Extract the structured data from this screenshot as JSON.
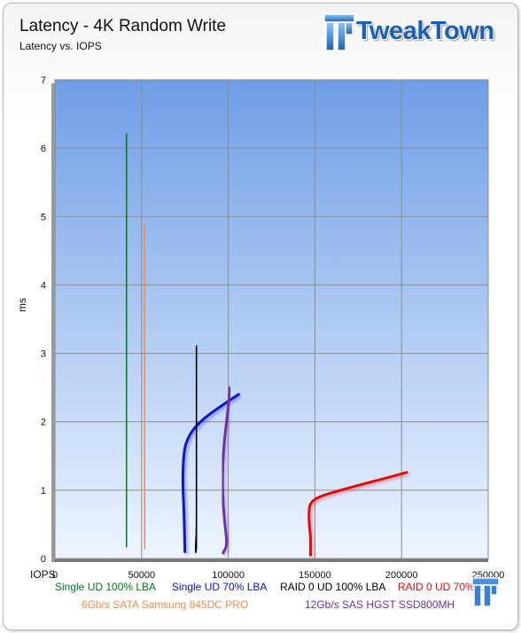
{
  "header": {
    "title": "Latency - 4K Random Write",
    "subtitle": "Latency vs. IOPS",
    "brand": "TweakTown"
  },
  "colors": {
    "plot_top": "#6f9ee6",
    "plot_bottom": "#eef5ff",
    "grid": "#8c8c8c"
  },
  "chart_data": {
    "type": "line",
    "title": "Latency - 4K Random Write",
    "subtitle": "Latency vs. IOPS",
    "xlabel": "IOPS",
    "ylabel": "ms",
    "xlim": [
      0,
      250000
    ],
    "ylim": [
      0,
      7
    ],
    "x_ticks": [
      "0",
      "50000",
      "100000",
      "150000",
      "200000",
      "250000"
    ],
    "y_ticks": [
      "0",
      "1",
      "2",
      "3",
      "4",
      "5",
      "6",
      "7"
    ],
    "grid": true,
    "legend_position": "bottom",
    "series": [
      {
        "name": "Single UD 100% LBA",
        "color": "#007a1f",
        "points": [
          [
            41000,
            0.18
          ],
          [
            41200,
            1.5
          ],
          [
            41400,
            3.0
          ],
          [
            41400,
            4.5
          ],
          [
            41600,
            6.2
          ]
        ]
      },
      {
        "name": "Single UD 70% LBA",
        "color": "#0a14c8",
        "points": [
          [
            75000,
            0.1
          ],
          [
            74600,
            0.6
          ],
          [
            73600,
            1.2
          ],
          [
            74600,
            1.6
          ],
          [
            76500,
            1.75
          ],
          [
            80000,
            1.9
          ],
          [
            86000,
            2.05
          ],
          [
            93000,
            2.18
          ],
          [
            100000,
            2.3
          ],
          [
            106000,
            2.4
          ]
        ]
      },
      {
        "name": "RAID 0 UD 100% LBA",
        "color": "#000000",
        "points": [
          [
            81000,
            0.1
          ],
          [
            82000,
            0.3
          ],
          [
            82000,
            1.0
          ],
          [
            82000,
            2.0
          ],
          [
            82000,
            3.1
          ]
        ]
      },
      {
        "name": "RAID 0 UD 70% LBA",
        "color": "#e01010",
        "points": [
          [
            147500,
            0.05
          ],
          [
            147500,
            0.35
          ],
          [
            146800,
            0.45
          ],
          [
            146500,
            0.7
          ],
          [
            147500,
            0.82
          ],
          [
            152000,
            0.9
          ],
          [
            162000,
            0.98
          ],
          [
            175000,
            1.07
          ],
          [
            190000,
            1.17
          ],
          [
            203000,
            1.26
          ]
        ]
      },
      {
        "name": "6Gb/s SATA Samsung 845DC PRO",
        "color": "#f08c50",
        "points": [
          [
            51500,
            0.15
          ],
          [
            51500,
            1.5
          ],
          [
            51700,
            3.0
          ],
          [
            52000,
            4.9
          ]
        ]
      },
      {
        "name": "12Gb/s SAS HGST SSD800MH",
        "color": "#7030a0",
        "points": [
          [
            97000,
            0.08
          ],
          [
            99500,
            0.2
          ],
          [
            98000,
            0.5
          ],
          [
            96500,
            1.0
          ],
          [
            97000,
            1.5
          ],
          [
            98500,
            1.9
          ],
          [
            100000,
            2.2
          ],
          [
            101000,
            2.5
          ]
        ]
      }
    ]
  }
}
